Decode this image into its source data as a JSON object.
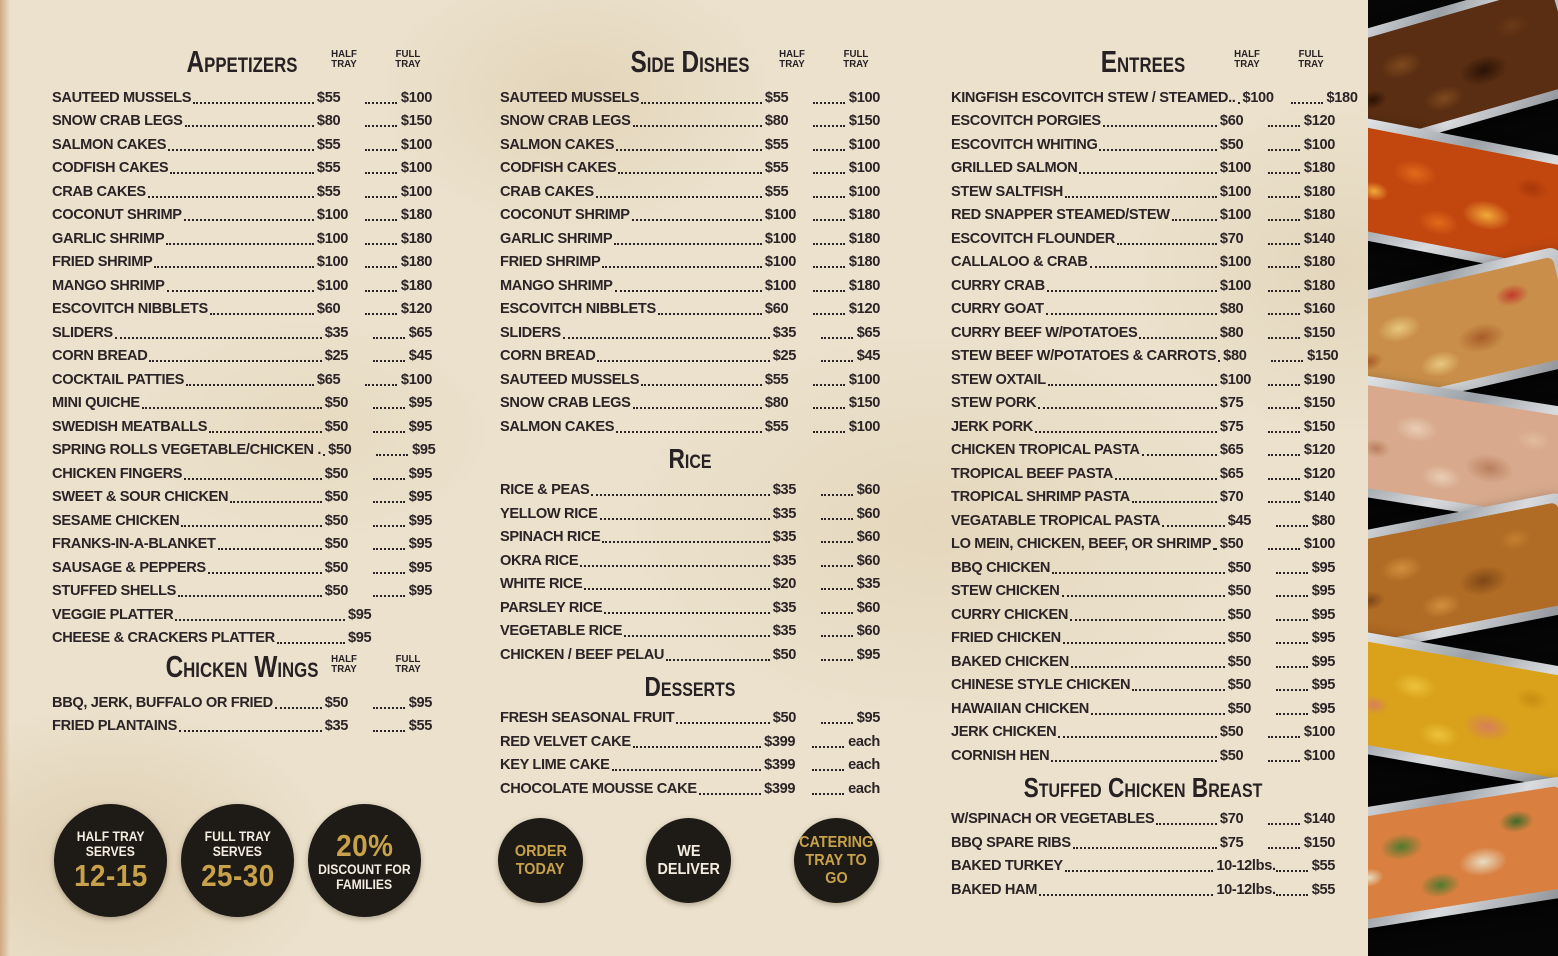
{
  "theme": {
    "parchment": "#ebe1cc",
    "ink": "#2b2326",
    "gold": "#c8a24a",
    "badge_black": "#1e1a15",
    "strip_black": "#060606",
    "foil_silver": "#b9bdc2"
  },
  "labels": {
    "half_tray": [
      "HALF",
      "TRAY"
    ],
    "full_tray": [
      "FULL",
      "TRAY"
    ]
  },
  "columns": [
    {
      "name": "left",
      "sections": [
        {
          "title": "Appetizers",
          "tray_headers": true,
          "items": [
            {
              "name": "SAUTEED MUSSELS",
              "half": "$55",
              "full": "$100"
            },
            {
              "name": "SNOW CRAB LEGS",
              "half": "$80",
              "full": "$150"
            },
            {
              "name": "SALMON CAKES",
              "half": "$55",
              "full": "$100"
            },
            {
              "name": "CODFISH CAKES",
              "half": "$55",
              "full": "$100"
            },
            {
              "name": "CRAB CAKES",
              "half": "$55",
              "full": "$100"
            },
            {
              "name": "COCONUT SHRIMP",
              "half": "$100",
              "full": "$180"
            },
            {
              "name": "GARLIC SHRIMP",
              "half": "$100",
              "full": "$180"
            },
            {
              "name": "FRIED SHRIMP",
              "half": "$100",
              "full": "$180"
            },
            {
              "name": "MANGO SHRIMP",
              "half": "$100",
              "full": "$180"
            },
            {
              "name": "ESCOVITCH NIBBLETS",
              "half": "$60",
              "full": "$120"
            },
            {
              "name": "SLIDERS",
              "half": "$35",
              "full": "$65"
            },
            {
              "name": "CORN BREAD",
              "half": "$25",
              "full": "$45"
            },
            {
              "name": "COCKTAIL PATTIES",
              "half": "$65",
              "full": "$100"
            },
            {
              "name": "MINI QUICHE",
              "half": "$50",
              "full": "$95"
            },
            {
              "name": "SWEDISH MEATBALLS",
              "half": "$50",
              "full": "$95"
            },
            {
              "name": "SPRING ROLLS VEGETABLE/CHICKEN .",
              "half": "$50",
              "full": "$95"
            },
            {
              "name": "CHICKEN FINGERS",
              "half": "$50",
              "full": "$95"
            },
            {
              "name": "SWEET & SOUR CHICKEN",
              "half": "$50",
              "full": "$95"
            },
            {
              "name": "SESAME CHICKEN",
              "half": "$50",
              "full": "$95"
            },
            {
              "name": "FRANKS-IN-A-BLANKET",
              "half": "$50",
              "full": "$95"
            },
            {
              "name": "SAUSAGE & PEPPERS",
              "half": "$50",
              "full": "$95"
            },
            {
              "name": "STUFFED SHELLS",
              "half": "$50",
              "full": "$95"
            },
            {
              "name": "VEGGIE PLATTER",
              "half": "$95",
              "full": ""
            },
            {
              "name": "CHEESE & CRACKERS PLATTER",
              "half": "$95",
              "full": ""
            }
          ]
        },
        {
          "title": "Chicken Wings",
          "tray_headers": true,
          "items": [
            {
              "name": "BBQ, JERK, BUFFALO OR FRIED",
              "half": "$50",
              "full": "$95"
            },
            {
              "name": "FRIED PLANTAINS",
              "half": "$35",
              "full": "$55"
            }
          ]
        }
      ]
    },
    {
      "name": "middle",
      "sections": [
        {
          "title": "Side Dishes",
          "tray_headers": true,
          "items": [
            {
              "name": "SAUTEED MUSSELS",
              "half": "$55",
              "full": "$100"
            },
            {
              "name": "SNOW CRAB LEGS",
              "half": "$80",
              "full": "$150"
            },
            {
              "name": "SALMON CAKES",
              "half": "$55",
              "full": "$100"
            },
            {
              "name": "CODFISH CAKES",
              "half": "$55",
              "full": "$100"
            },
            {
              "name": "CRAB CAKES",
              "half": "$55",
              "full": "$100"
            },
            {
              "name": "COCONUT SHRIMP",
              "half": "$100",
              "full": "$180"
            },
            {
              "name": "GARLIC SHRIMP",
              "half": "$100",
              "full": "$180"
            },
            {
              "name": "FRIED SHRIMP",
              "half": "$100",
              "full": "$180"
            },
            {
              "name": "MANGO SHRIMP",
              "half": "$100",
              "full": "$180"
            },
            {
              "name": "ESCOVITCH NIBBLETS",
              "half": "$60",
              "full": "$120"
            },
            {
              "name": "SLIDERS",
              "half": "$35",
              "full": "$65"
            },
            {
              "name": "CORN BREAD",
              "half": "$25",
              "full": "$45"
            },
            {
              "name": "SAUTEED MUSSELS",
              "half": "$55",
              "full": "$100"
            },
            {
              "name": "SNOW CRAB LEGS",
              "half": "$80",
              "full": "$150"
            },
            {
              "name": "SALMON CAKES",
              "half": "$55",
              "full": "$100"
            }
          ]
        },
        {
          "title": "Rice",
          "tray_headers": false,
          "items": [
            {
              "name": "RICE & PEAS",
              "half": "$35",
              "full": "$60"
            },
            {
              "name": "YELLOW RICE",
              "half": "$35",
              "full": "$60"
            },
            {
              "name": "SPINACH RICE",
              "half": "$35",
              "full": "$60"
            },
            {
              "name": "OKRA RICE",
              "half": "$35",
              "full": "$60"
            },
            {
              "name": "WHITE RICE",
              "half": "$20",
              "full": "$35"
            },
            {
              "name": "PARSLEY RICE",
              "half": "$35",
              "full": "$60"
            },
            {
              "name": "VEGETABLE RICE",
              "half": "$35",
              "full": "$60"
            },
            {
              "name": "CHICKEN / BEEF PELAU",
              "half": "$50",
              "full": "$95"
            }
          ]
        },
        {
          "title": "Desserts",
          "tray_headers": false,
          "items": [
            {
              "name": "FRESH SEASONAL FRUIT",
              "half": "$50",
              "full": "$95"
            },
            {
              "name": "RED VELVET CAKE",
              "half": "$399",
              "full": "each"
            },
            {
              "name": "KEY LIME CAKE",
              "half": "$399",
              "full": "each"
            },
            {
              "name": "CHOCOLATE MOUSSE CAKE",
              "half": "$399",
              "full": "each"
            }
          ]
        }
      ]
    },
    {
      "name": "right",
      "sections": [
        {
          "title": "Entrees",
          "tray_headers": true,
          "items": [
            {
              "name": "KINGFISH ESCOVITCH STEW / STEAMED..",
              "half": "$100",
              "full": "$180"
            },
            {
              "name": "ESCOVITCH PORGIES",
              "half": "$60",
              "full": "$120"
            },
            {
              "name": "ESCOVITCH WHITING",
              "half": "$50",
              "full": "$100"
            },
            {
              "name": "GRILLED SALMON",
              "half": "$100",
              "full": "$180"
            },
            {
              "name": "STEW SALTFISH",
              "half": "$100",
              "full": "$180"
            },
            {
              "name": "RED SNAPPER STEAMED/STEW",
              "half": "$100",
              "full": "$180"
            },
            {
              "name": "ESCOVITCH FLOUNDER",
              "half": "$70",
              "full": "$140"
            },
            {
              "name": "CALLALOO & CRAB",
              "half": "$100",
              "full": "$180"
            },
            {
              "name": "CURRY CRAB",
              "half": "$100",
              "full": "$180"
            },
            {
              "name": "CURRY GOAT",
              "half": "$80",
              "full": "$160"
            },
            {
              "name": "CURRY BEEF W/POTATOES",
              "half": "$80",
              "full": "$150"
            },
            {
              "name": "STEW BEEF W/POTATOES & CARROTS",
              "half": "$80",
              "full": "$150"
            },
            {
              "name": "STEW OXTAIL",
              "half": "$100",
              "full": "$190"
            },
            {
              "name": "STEW PORK",
              "half": "$75",
              "full": "$150"
            },
            {
              "name": "JERK PORK",
              "half": "$75",
              "full": "$150"
            },
            {
              "name": "CHICKEN TROPICAL PASTA",
              "half": "$65",
              "full": "$120"
            },
            {
              "name": "TROPICAL BEEF PASTA",
              "half": "$65",
              "full": "$120"
            },
            {
              "name": "TROPICAL SHRIMP PASTA",
              "half": "$70",
              "full": "$140"
            },
            {
              "name": "VEGATABLE TROPICAL PASTA",
              "half": "$45",
              "full": "$80"
            },
            {
              "name": "LO MEIN, CHICKEN, BEEF, OR SHRIMP",
              "half": "$50",
              "full": "$100"
            },
            {
              "name": "BBQ CHICKEN",
              "half": "$50",
              "full": "$95"
            },
            {
              "name": "STEW CHICKEN",
              "half": "$50",
              "full": "$95"
            },
            {
              "name": "CURRY CHICKEN",
              "half": "$50",
              "full": "$95"
            },
            {
              "name": "FRIED CHICKEN",
              "half": "$50",
              "full": "$95"
            },
            {
              "name": "BAKED CHICKEN",
              "half": "$50",
              "full": "$95"
            },
            {
              "name": "CHINESE STYLE CHICKEN",
              "half": "$50",
              "full": "$95"
            },
            {
              "name": "HAWAIIAN CHICKEN",
              "half": "$50",
              "full": "$95"
            },
            {
              "name": "JERK CHICKEN",
              "half": "$50",
              "full": "$100"
            },
            {
              "name": "CORNISH HEN",
              "half": "$50",
              "full": "$100"
            }
          ]
        },
        {
          "title": "Stuffed Chicken Breast",
          "tray_headers": false,
          "items": [
            {
              "name": "W/SPINACH OR VEGETABLES",
              "half": "$70",
              "full": "$140"
            },
            {
              "name": "BBQ SPARE RIBS",
              "half": "$75",
              "full": "$150"
            },
            {
              "name": "BAKED TURKEY",
              "half": "10-12lbs.",
              "full": "$55"
            },
            {
              "name": "BAKED HAM",
              "half": "10-12lbs.",
              "full": "$55"
            }
          ]
        }
      ]
    }
  ],
  "badges_left": [
    {
      "name": "half-tray-serves-badge",
      "lines": [
        {
          "text": "HALF TRAY",
          "style": "small-white"
        },
        {
          "text": "SERVES",
          "style": "small-white"
        },
        {
          "text": "12-15",
          "style": "big-gold"
        }
      ]
    },
    {
      "name": "full-tray-serves-badge",
      "lines": [
        {
          "text": "FULL TRAY",
          "style": "small-white"
        },
        {
          "text": "SERVES",
          "style": "small-white"
        },
        {
          "text": "25-30",
          "style": "big-gold"
        }
      ]
    },
    {
      "name": "family-discount-badge",
      "lines": [
        {
          "text": "20%",
          "style": "big-gold"
        },
        {
          "text": "DISCOUNT FOR",
          "style": "small-white"
        },
        {
          "text": "FAMILIES",
          "style": "small-white"
        }
      ]
    }
  ],
  "badges_middle": [
    {
      "name": "order-today-badge",
      "lines": [
        {
          "text": "ORDER",
          "style": "medium-gold"
        },
        {
          "text": "TODAY",
          "style": "medium-gold"
        }
      ]
    },
    {
      "name": "we-deliver-badge",
      "lines": [
        {
          "text": "WE",
          "style": "medium-white"
        },
        {
          "text": "DELIVER",
          "style": "medium-white"
        }
      ]
    },
    {
      "name": "catering-tray-to-go-badge",
      "lines": [
        {
          "text": "CATERING",
          "style": "medium-gold"
        },
        {
          "text": "TRAY TO",
          "style": "medium-gold"
        },
        {
          "text": "GO",
          "style": "medium-gold"
        }
      ]
    }
  ],
  "photos": [
    {
      "name": "jerk-bbq-meat-tray-photo",
      "colors": [
        "#5a2e12",
        "#7e4a1f",
        "#2a1205",
        "#6b3a18"
      ]
    },
    {
      "name": "escovitch-fish-tray-photo",
      "colors": [
        "#c2470f",
        "#e06a1a",
        "#f2a93b",
        "#a83708"
      ]
    },
    {
      "name": "hawaiian-chicken-tray-photo",
      "colors": [
        "#c98f4a",
        "#e8c77f",
        "#a85c28",
        "#c23a2a"
      ]
    },
    {
      "name": "baked-chicken-tray-photo",
      "colors": [
        "#d8a98c",
        "#e9cdb4",
        "#b97f5e",
        "#e2bb9e"
      ]
    },
    {
      "name": "fried-chicken-tray-photo",
      "colors": [
        "#b06b24",
        "#d28f3e",
        "#7e4716",
        "#c47f30"
      ]
    },
    {
      "name": "shrimp-lo-mein-tray-photo",
      "colors": [
        "#d9a21a",
        "#eec23c",
        "#d87f5a",
        "#c78d12"
      ]
    },
    {
      "name": "steamed-vegetables-tray-photo",
      "colors": [
        "#d97f3f",
        "#4f7a2d",
        "#e8dcc2",
        "#3e6a2a"
      ]
    }
  ]
}
